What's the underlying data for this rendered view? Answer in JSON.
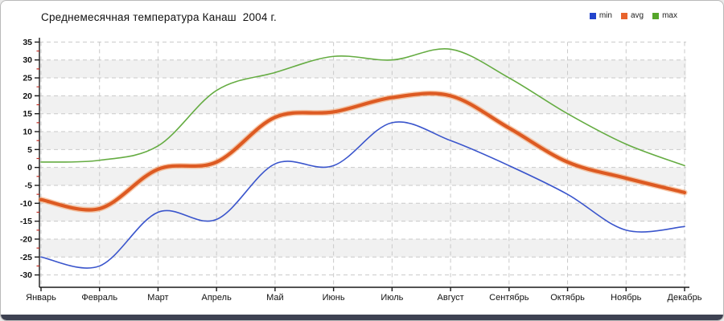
{
  "window": {
    "bottom_bar_color": "#3e4252"
  },
  "chart_data": {
    "type": "line",
    "title": "Среднемесячная температура Канаш  2004 г.",
    "categories": [
      "Январь",
      "Февраль",
      "Март",
      "Апрель",
      "Май",
      "Июнь",
      "Июль",
      "Август",
      "Сентябрь",
      "Октябрь",
      "Ноябрь",
      "Декабрь"
    ],
    "series": [
      {
        "name": "min",
        "color": "#3a55cc",
        "legend_color": "#2244cc",
        "line_width": 1.6,
        "values": [
          -25,
          -27.5,
          -12.5,
          -14.5,
          1,
          0.5,
          12.5,
          7.5,
          0.5,
          -7.5,
          -17.5,
          -16.5
        ]
      },
      {
        "name": "avg",
        "color": "#dd5a22",
        "legend_color": "#e8632c",
        "line_width": 4.2,
        "halo": true,
        "halo_color": "#f2a069",
        "values": [
          -9,
          -11.5,
          -0.5,
          1.5,
          14,
          15.5,
          19.5,
          20,
          11,
          1.5,
          -3,
          -7
        ]
      },
      {
        "name": "max",
        "color": "#65ac42",
        "legend_color": "#55a62a",
        "line_width": 1.6,
        "values": [
          1.5,
          2,
          6,
          21.5,
          26.5,
          31,
          30,
          33,
          25,
          15,
          6.5,
          0.5
        ]
      }
    ],
    "ylim": [
      -30,
      35
    ],
    "ytick_step": 5,
    "yticks": [
      35,
      30,
      25,
      20,
      15,
      10,
      5,
      0,
      -5,
      -10,
      -15,
      -20,
      -25,
      -30
    ],
    "grid": "dashed",
    "legend_position": "top-right",
    "interpolation": "spline",
    "colors": {
      "grid_line": "#c9c9c9",
      "band_fill": "#f1f1f1",
      "axis_line": "#1a1a1a",
      "tick_major": "#1a1a1a",
      "tick_minor": "#c2281e",
      "label_text": "#111111"
    }
  }
}
